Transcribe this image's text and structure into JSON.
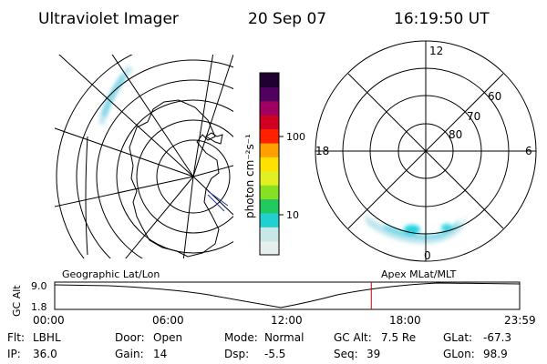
{
  "header": {
    "title": "Ultraviolet Imager",
    "date": "20 Sep 07",
    "time": "16:19:50 UT"
  },
  "left_panel": {
    "label": "Geographic Lat/Lon"
  },
  "right_panel": {
    "label": "Apex MLat/MLT",
    "mlt_labels": {
      "top": "12",
      "left": "18",
      "right": "6",
      "bottom": "0"
    },
    "lat_labels": [
      "60",
      "70",
      "80"
    ]
  },
  "colorbar": {
    "unit_label": "photon cm⁻²s⁻¹",
    "ticks": [
      {
        "label": "100",
        "value": 100
      },
      {
        "label": "10",
        "value": 10
      }
    ],
    "scale": "log",
    "colors": [
      "#e6eeee",
      "#c8e8e8",
      "#22d0d0",
      "#22c860",
      "#88e022",
      "#e0f022",
      "#ffe000",
      "#ffa000",
      "#ff2000",
      "#d00020",
      "#a00060",
      "#500060",
      "#200030"
    ]
  },
  "timeline": {
    "ylabel": "GC Alt",
    "y_ticks": [
      "9.0",
      "1.8"
    ],
    "x_ticks": [
      "00:00",
      "06:00",
      "12:00",
      "18:00",
      "23:59"
    ],
    "marker_time": "16:19:50",
    "marker_color": "#cc0000"
  },
  "info": {
    "row1": [
      {
        "key": "Flt:",
        "value": "LBHL"
      },
      {
        "key": "Door:",
        "value": "Open"
      },
      {
        "key": "Mode:",
        "value": "Normal"
      },
      {
        "key": "GC Alt:",
        "value": "7.5 Re"
      },
      {
        "key": "GLat:",
        "value": "-67.3"
      }
    ],
    "row2": [
      {
        "key": "IP:",
        "value": "36.0"
      },
      {
        "key": "Gain:",
        "value": "14"
      },
      {
        "key": "Dsp:",
        "value": "-5.5"
      },
      {
        "key": "Seq:",
        "value": "39"
      },
      {
        "key": "GLon:",
        "value": "98.9"
      }
    ]
  }
}
